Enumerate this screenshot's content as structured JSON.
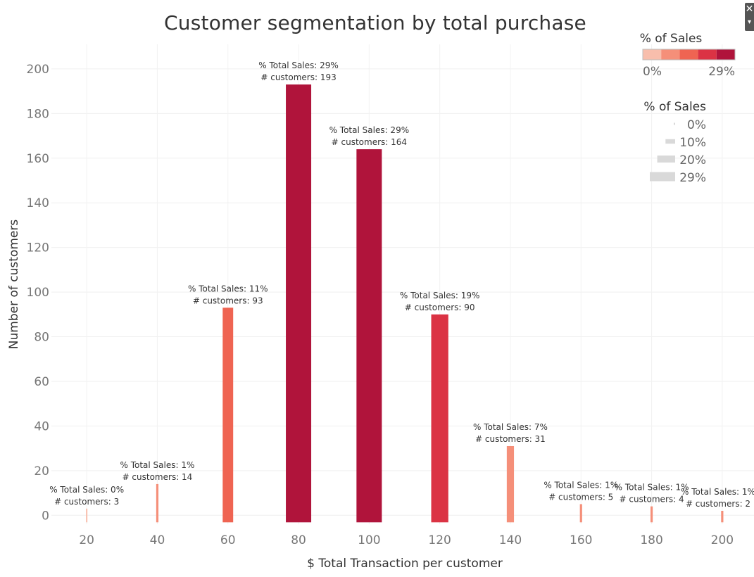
{
  "chart_data": {
    "type": "bar",
    "title": "Customer segmentation by total purchase",
    "xlabel": "$ Total Transaction per customer",
    "ylabel": "Number of customers",
    "x": [
      20,
      40,
      60,
      80,
      100,
      120,
      140,
      160,
      180,
      200
    ],
    "x_ticks": [
      20,
      40,
      60,
      80,
      100,
      120,
      140,
      160,
      180,
      200
    ],
    "y_ticks": [
      0,
      20,
      40,
      60,
      80,
      100,
      120,
      140,
      160,
      180,
      200
    ],
    "xlim": [
      10,
      209
    ],
    "ylim": [
      -4,
      211
    ],
    "series": [
      {
        "values": [
          3,
          14,
          93,
          193,
          164,
          90,
          31,
          5,
          4,
          2
        ],
        "pct_sales": [
          0,
          1,
          11,
          29,
          29,
          19,
          7,
          1,
          1,
          1
        ]
      }
    ],
    "labels": [
      {
        "line1": "% Total Sales: 0%",
        "line2": "# customers:  3"
      },
      {
        "line1": "% Total Sales: 1%",
        "line2": "# customers:  14"
      },
      {
        "line1": "% Total Sales: 11%",
        "line2": "# customers:  93"
      },
      {
        "line1": "% Total Sales: 29%",
        "line2": "# customers:  193"
      },
      {
        "line1": "% Total Sales: 29%",
        "line2": "# customers:  164"
      },
      {
        "line1": "% Total Sales: 19%",
        "line2": "# customers:  90"
      },
      {
        "line1": "% Total Sales: 7%",
        "line2": "# customers:  31"
      },
      {
        "line1": "% Total Sales: 1%",
        "line2": "# customers:  5"
      },
      {
        "line1": "% Total Sales: 1%",
        "line2": "# customers:  4"
      },
      {
        "line1": "% Total Sales: 1%",
        "line2": "# customers:  2"
      }
    ],
    "grid": true,
    "color_legend": {
      "title": "% of Sales",
      "min_label": "0%",
      "max_label": "29%",
      "colors": [
        "#f8beac",
        "#f58f79",
        "#ef6452",
        "#db3344",
        "#b0143b"
      ]
    },
    "size_legend": {
      "title": "% of Sales",
      "items": [
        {
          "label": "0%",
          "value": 0
        },
        {
          "label": "10%",
          "value": 10
        },
        {
          "label": "20%",
          "value": 20
        },
        {
          "label": "29%",
          "value": 29
        }
      ],
      "color": "#d9d9d9"
    },
    "legend_position": "top-right"
  }
}
